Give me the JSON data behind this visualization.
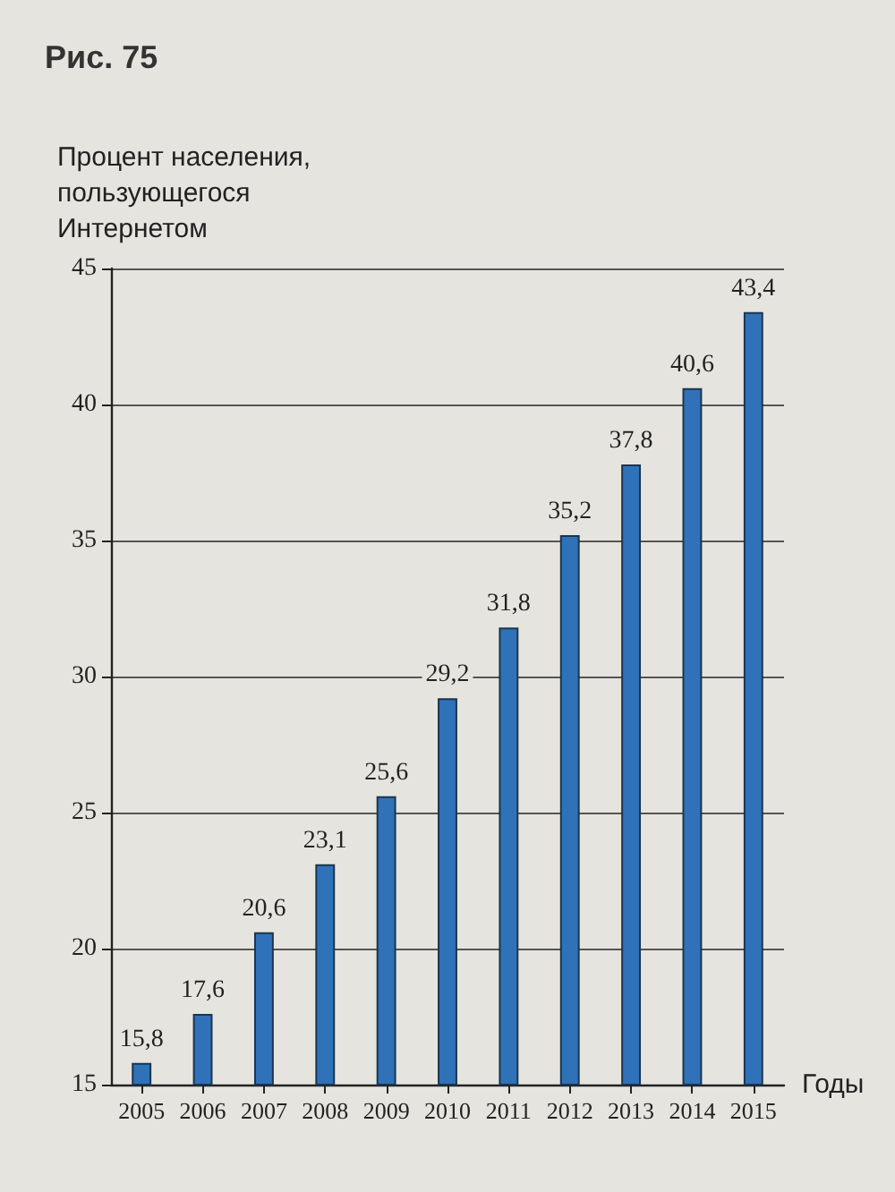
{
  "chart_data": {
    "type": "bar",
    "title": "Рис. 75",
    "ylabel": "Процент населения, пользующегося Интернетом",
    "xlabel": "Годы",
    "categories": [
      "2005",
      "2006",
      "2007",
      "2008",
      "2009",
      "2010",
      "2011",
      "2012",
      "2013",
      "2014",
      "2015"
    ],
    "values": [
      15.8,
      17.6,
      20.6,
      23.1,
      25.6,
      29.2,
      31.8,
      35.2,
      37.8,
      40.6,
      43.4
    ],
    "value_labels": [
      "15,8",
      "17,6",
      "20,6",
      "23,1",
      "25,6",
      "29,2",
      "31,8",
      "35,2",
      "37,8",
      "40,6",
      "43,4"
    ],
    "color": "#2f72b8",
    "ylim": [
      15,
      45
    ],
    "yticks": [
      15,
      20,
      25,
      30,
      35,
      40,
      45
    ],
    "grid": "y"
  }
}
